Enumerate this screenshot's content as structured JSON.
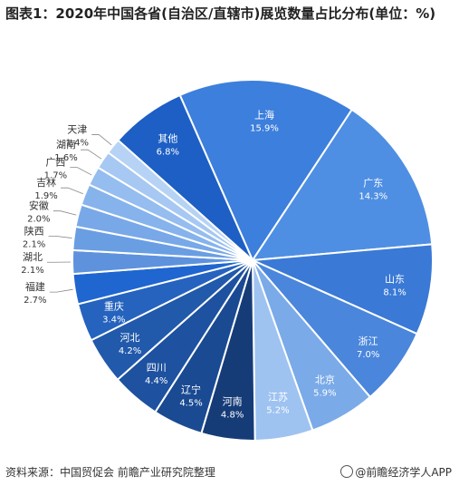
{
  "title": "图表1：2020年中国各省(自治区/直辖市)展览数量占比分布(单位：%)",
  "footer": {
    "source": "资料来源：中国贸促会 前瞻产业研究院整理",
    "brand": "@前瞻经济学人APP"
  },
  "chart_data": {
    "type": "pie",
    "unit": "%",
    "start_angle_deg": -23.8,
    "slices": [
      {
        "label": "上海",
        "value": 15.9,
        "color": "#3d7fdc"
      },
      {
        "label": "广东",
        "value": 14.3,
        "color": "#4e8fe3"
      },
      {
        "label": "山东",
        "value": 8.1,
        "color": "#3a79d6"
      },
      {
        "label": "浙江",
        "value": 7.0,
        "color": "#4a86db"
      },
      {
        "label": "北京",
        "value": 5.9,
        "color": "#7aaae8"
      },
      {
        "label": "江苏",
        "value": 5.2,
        "color": "#9ec3f1"
      },
      {
        "label": "河南",
        "value": 4.8,
        "color": "#163c78"
      },
      {
        "label": "辽宁",
        "value": 4.5,
        "color": "#1a4a92"
      },
      {
        "label": "四川",
        "value": 4.4,
        "color": "#1e519f"
      },
      {
        "label": "河北",
        "value": 4.2,
        "color": "#2159ab"
      },
      {
        "label": "重庆",
        "value": 3.4,
        "color": "#2563be"
      },
      {
        "label": "福建",
        "value": 2.7,
        "color": "#1f66d1"
      },
      {
        "label": "湖北",
        "value": 2.1,
        "color": "#5e92dd"
      },
      {
        "label": "陕西",
        "value": 2.1,
        "color": "#6a9ee3"
      },
      {
        "label": "安徽",
        "value": 2.0,
        "color": "#78a8e8"
      },
      {
        "label": "吉林",
        "value": 1.9,
        "color": "#86b3ec"
      },
      {
        "label": "广西",
        "value": 1.7,
        "color": "#95bdef"
      },
      {
        "label": "湖南",
        "value": 1.6,
        "color": "#a6c8f2"
      },
      {
        "label": "天津",
        "value": 1.4,
        "color": "#b6d3f5"
      },
      {
        "label": "其他",
        "value": 6.8,
        "color": "#1d5fc4"
      }
    ]
  }
}
